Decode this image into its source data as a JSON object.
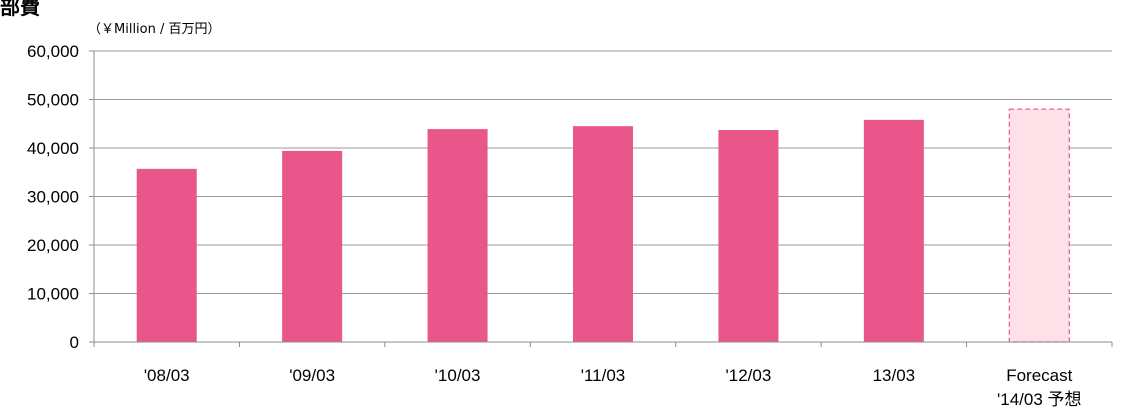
{
  "title": "部費",
  "chart_data": {
    "type": "bar",
    "unit_label": "（￥Million / 百万円）",
    "categories": [
      [
        "'08/03"
      ],
      [
        "'09/03"
      ],
      [
        "'10/03"
      ],
      [
        "'11/03"
      ],
      [
        "'12/03"
      ],
      [
        "13/03"
      ],
      [
        "Forecast",
        "'14/03 予想"
      ]
    ],
    "series": [
      {
        "values": [
          35700,
          39400,
          43900,
          44500,
          43700,
          45800,
          48000
        ],
        "colors": [
          "#e8568a",
          "#e8568a",
          "#e8568a",
          "#e8568a",
          "#e8568a",
          "#e8568a",
          "#fde0e8"
        ],
        "forecast_index": 6,
        "forecast_border": "#e8568a"
      }
    ],
    "ylim": [
      0,
      60000
    ],
    "yticks": [
      "0",
      "10,000",
      "20,000",
      "30,000",
      "40,000",
      "50,000",
      "60,000"
    ],
    "ytick_values": [
      0,
      10000,
      20000,
      30000,
      40000,
      50000,
      60000
    ],
    "grid": true,
    "xlabel": "",
    "ylabel": ""
  }
}
